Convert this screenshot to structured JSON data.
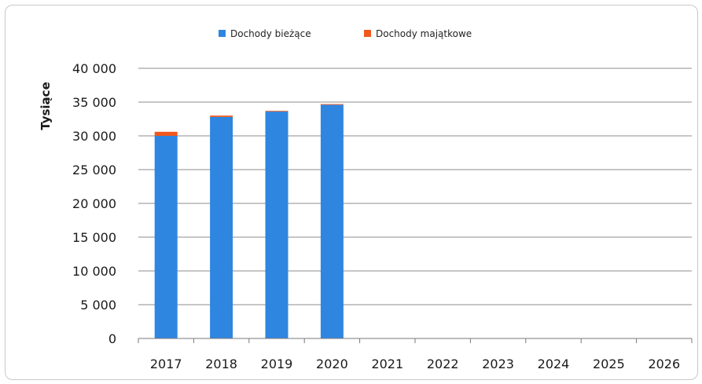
{
  "chart_data": {
    "type": "bar",
    "stacked": true,
    "title": "",
    "xlabel": "",
    "ylabel": "Tysiące",
    "categories": [
      "2017",
      "2018",
      "2019",
      "2020",
      "2021",
      "2022",
      "2023",
      "2024",
      "2025",
      "2026"
    ],
    "series": [
      {
        "name": "Dochody bieżące",
        "color": "#2f86e0",
        "values": [
          30000,
          32800,
          33600,
          34600,
          null,
          null,
          null,
          null,
          null,
          null
        ]
      },
      {
        "name": "Dochody majątkowe",
        "color": "#f0581e",
        "values": [
          600,
          200,
          100,
          100,
          null,
          null,
          null,
          null,
          null,
          null
        ]
      }
    ],
    "ylim": [
      0,
      40000
    ],
    "yticks": [
      0,
      5000,
      10000,
      15000,
      20000,
      25000,
      30000,
      35000,
      40000
    ],
    "ytick_labels": [
      "0",
      "5 000",
      "10 000",
      "15 000",
      "20 000",
      "25 000",
      "30 000",
      "35 000",
      "40 000"
    ],
    "grid": true,
    "legend_position": "top-center"
  }
}
